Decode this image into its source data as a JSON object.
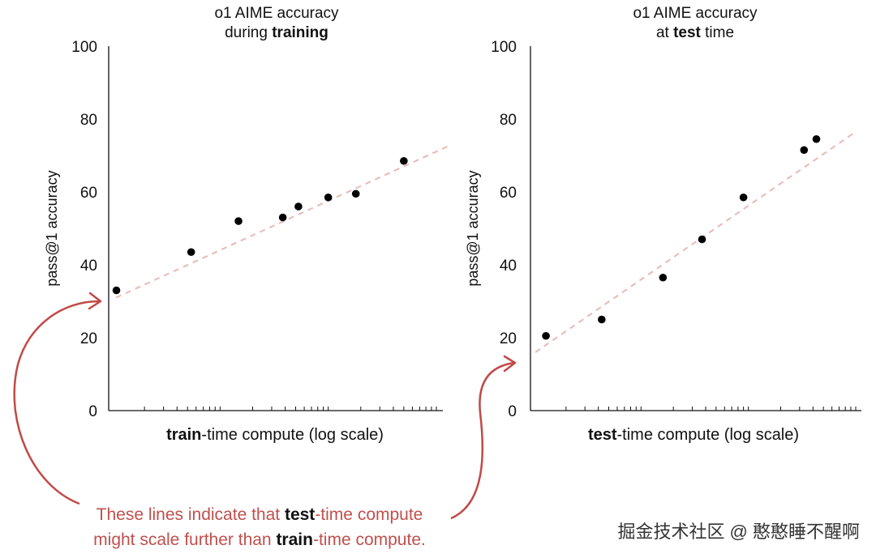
{
  "chart_data": [
    {
      "type": "scatter",
      "title_line1": "o1 AIME accuracy",
      "title_line2_prefix": "during ",
      "title_line2_bold": "training",
      "xlabel_bold": "train",
      "xlabel_rest": "-time compute (log scale)",
      "ylabel": "pass@1 accuracy",
      "ylim": [
        0,
        100
      ],
      "yticks": [
        "0",
        "20",
        "40",
        "60",
        "80",
        "100"
      ],
      "xscale": "log",
      "x_decades": 3,
      "grid": false,
      "x": [
        1.1,
        5.4,
        14.8,
        38.0,
        53.0,
        100.0,
        180.0,
        500.0
      ],
      "y": [
        33,
        43.5,
        52,
        53,
        56,
        58.5,
        59.5,
        68.5
      ],
      "trendline": {
        "style": "dashed",
        "y_at_start": 31,
        "y_at_end": 72.5
      }
    },
    {
      "type": "scatter",
      "title_line1": "o1 AIME accuracy",
      "title_line2_prefix": "at ",
      "title_line2_bold": "test",
      "title_line2_suffix": " time",
      "xlabel_bold": "test",
      "xlabel_rest": "-time compute (log scale)",
      "ylabel": "pass@1 accuracy",
      "ylim": [
        0,
        100
      ],
      "yticks": [
        "0",
        "20",
        "40",
        "60",
        "80",
        "100"
      ],
      "xscale": "log",
      "x_decades": 3,
      "grid": false,
      "x": [
        1.3,
        4.3,
        16.0,
        37.0,
        90.0,
        330.0,
        430.0
      ],
      "y": [
        20.5,
        25,
        36.5,
        47,
        58.5,
        71.5,
        74.5
      ],
      "trendline": {
        "style": "dashed",
        "y_at_start": 16,
        "y_at_end": 76.5
      }
    }
  ],
  "annotation": {
    "line1_a": "These lines indicate that ",
    "line1_b": "test",
    "line1_c": "-time compute",
    "line2_a": "might scale further than ",
    "line2_b": "train",
    "line2_c": "-time compute."
  },
  "colors": {
    "point": "#000000",
    "trend": "#e8b9b4",
    "annotation": "#c0504d",
    "axis": "#111111"
  },
  "watermark": "掘金技术社区 @ 憨憨睡不醒啊"
}
